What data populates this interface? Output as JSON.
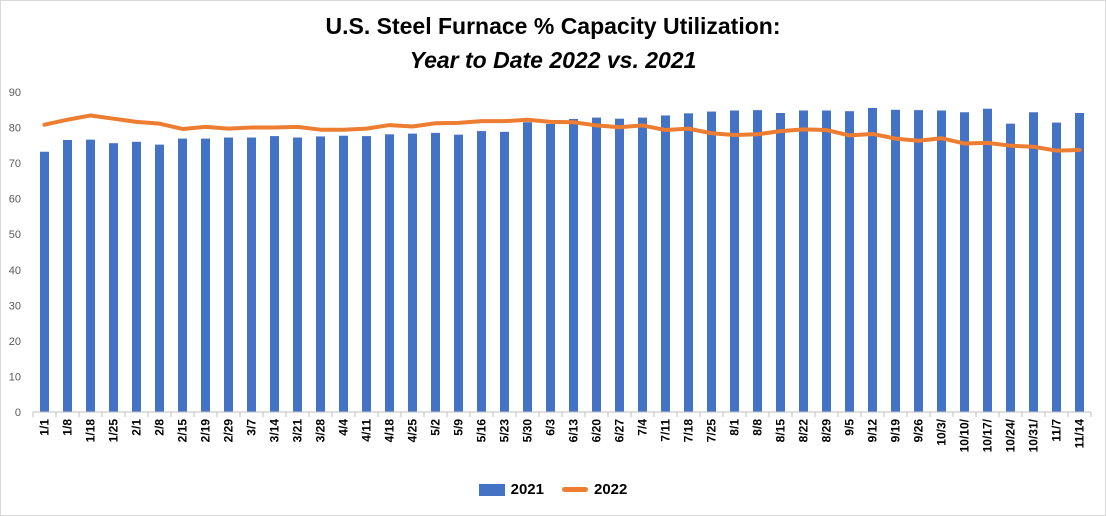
{
  "chart_data": {
    "type": "bar",
    "title": "U.S. Steel Furnace % Capacity Utilization:",
    "subtitle": "Year to Date 2022 vs. 2021",
    "categories": [
      "1/1",
      "1/8",
      "1/18",
      "1/25",
      "2/1",
      "2/8",
      "2/15",
      "2/19",
      "2/29",
      "3/7",
      "3/14",
      "3/21",
      "3/28",
      "4/4",
      "4/11",
      "4/18",
      "4/25",
      "5/2",
      "5/9",
      "5/16",
      "5/23",
      "5/30",
      "6/3",
      "6/13",
      "6/20",
      "6/27",
      "7/4",
      "7/11",
      "7/18",
      "7/25",
      "8/1",
      "8/8",
      "8/15",
      "8/22",
      "8/29",
      "9/5",
      "9/12",
      "9/19",
      "9/26",
      "10/3/",
      "10/10/",
      "10/17/",
      "10/24/",
      "10/31/",
      "11/7",
      "11/14"
    ],
    "series": [
      {
        "name": "2021",
        "kind": "bar",
        "color": "#4472C4",
        "values": [
          73.2,
          76.5,
          76.6,
          75.6,
          76.0,
          75.2,
          76.9,
          76.9,
          77.2,
          77.2,
          77.6,
          77.2,
          77.5,
          77.7,
          77.6,
          78.1,
          78.3,
          78.5,
          78.0,
          79.0,
          78.8,
          81.5,
          81.0,
          82.4,
          82.8,
          82.5,
          82.8,
          83.4,
          84.0,
          84.5,
          84.8,
          84.9,
          84.1,
          84.8,
          84.8,
          84.6,
          85.5,
          85.0,
          84.9,
          84.8,
          84.3,
          85.3,
          81.1,
          84.3,
          81.4,
          84.1
        ]
      },
      {
        "name": "2022",
        "kind": "line",
        "color": "#ED7D31",
        "values": [
          80.8,
          82.2,
          83.4,
          82.5,
          81.6,
          81.1,
          79.6,
          80.2,
          79.7,
          80.0,
          80.0,
          80.2,
          79.4,
          79.4,
          79.7,
          80.7,
          80.3,
          81.2,
          81.3,
          81.8,
          81.8,
          82.2,
          81.6,
          81.5,
          80.6,
          80.1,
          80.6,
          79.3,
          79.7,
          78.4,
          77.9,
          78.1,
          79.0,
          79.5,
          79.3,
          77.8,
          78.2,
          76.9,
          76.3,
          77.0,
          75.5,
          75.7,
          74.9,
          74.6,
          73.5,
          73.7
        ]
      }
    ],
    "ylim": [
      0,
      90
    ],
    "yticks": [
      0,
      10,
      20,
      30,
      40,
      50,
      60,
      70,
      80,
      90
    ],
    "grid": false,
    "legend": "bottom",
    "xlabel": "",
    "ylabel": ""
  }
}
